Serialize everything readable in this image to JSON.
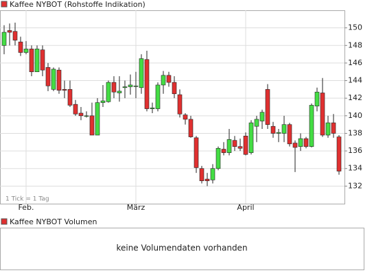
{
  "chart_data": {
    "type": "candlestick",
    "title": "Kaffee NYBOT (Rohstoffe Indikation)",
    "note": "1 Tick = 1 Tag",
    "legend_color": "#e03030",
    "up_color": "#44dd44",
    "down_color": "#e03030",
    "grid": true,
    "categories": [
      null,
      null,
      null,
      null,
      "Feb.",
      null,
      null,
      null,
      null,
      null,
      null,
      null,
      null,
      null,
      null,
      null,
      null,
      null,
      null,
      null,
      null,
      null,
      null,
      null,
      "März",
      null,
      null,
      null,
      null,
      null,
      null,
      null,
      null,
      null,
      null,
      null,
      null,
      null,
      null,
      null,
      null,
      null,
      null,
      null,
      "April",
      null,
      null,
      null,
      null,
      null,
      null,
      null,
      null,
      null,
      null,
      null,
      null,
      null,
      null,
      null,
      null,
      null
    ],
    "open": [
      148,
      149.7,
      149.6,
      148.4,
      147.2,
      147.6,
      145,
      147.5,
      145.5,
      143,
      145.2,
      143,
      143,
      141.3,
      140.3,
      140,
      140,
      137.8,
      141.5,
      141.6,
      143.8,
      142.6,
      143.2,
      143.3,
      143.4,
      143.2,
      146.4,
      140.8,
      140.8,
      143.5,
      144.6,
      143.8,
      142.4,
      140.1,
      139.6,
      137.5,
      134,
      132.8,
      132.7,
      134,
      136.2,
      135.8,
      137.2,
      136.5,
      137.7,
      135.8,
      138.8,
      139.4,
      143,
      138.8,
      138,
      138,
      139,
      136.9,
      136.5,
      137.4,
      136.5,
      141.1,
      142.6,
      137.8,
      139.2,
      137.6
    ],
    "high": [
      150.3,
      150.5,
      150.6,
      149,
      148.5,
      148,
      148,
      148,
      146,
      145.5,
      145.5,
      144,
      144,
      141.8,
      141,
      140.5,
      141.5,
      142,
      143.5,
      144,
      144.5,
      144.5,
      144,
      144.7,
      145,
      147,
      147.4,
      141.5,
      143.8,
      145.1,
      145,
      144.5,
      143,
      140.3,
      140,
      137.7,
      134.3,
      133.5,
      134.5,
      136.5,
      137,
      138.5,
      137.7,
      137.4,
      138.1,
      139.5,
      140,
      140.7,
      143.6,
      139.3,
      138.5,
      140,
      139.2,
      137.2,
      138,
      137.6,
      141.4,
      143.2,
      144.3,
      140,
      140.2,
      137.8
    ],
    "low": [
      147,
      148,
      148,
      146.8,
      147,
      144.5,
      145,
      144.5,
      142.8,
      142.8,
      142.5,
      142,
      141,
      140,
      139.5,
      139.8,
      137.8,
      137.8,
      141,
      141.5,
      142,
      141.6,
      142,
      142.4,
      142,
      142.5,
      140.5,
      140.3,
      140.5,
      142.5,
      143.3,
      142,
      139.8,
      139,
      137.5,
      133.5,
      132.3,
      132,
      132.3,
      133.8,
      135.5,
      135.5,
      136,
      136,
      135.5,
      135.6,
      137,
      138.5,
      138.5,
      137.5,
      137,
      137,
      136.5,
      133.6,
      136,
      136.3,
      136.4,
      140.5,
      137.6,
      137.5,
      137.5,
      133.3
    ],
    "close": [
      149.5,
      149.5,
      148.6,
      147.2,
      147.6,
      145,
      147.6,
      145.2,
      143.4,
      145.3,
      142.9,
      142.9,
      141.2,
      140.2,
      140,
      140,
      137.8,
      141.5,
      141.7,
      143.8,
      142.7,
      142.8,
      143.3,
      143.5,
      143.4,
      146.5,
      140.8,
      140.9,
      143.5,
      144.6,
      143.8,
      142.5,
      140.2,
      139.6,
      137.6,
      134.1,
      132.6,
      132.6,
      134,
      136.3,
      135.8,
      137.3,
      136.5,
      136.3,
      135.6,
      139.2,
      139.6,
      140.4,
      139,
      138,
      138.1,
      139,
      136.8,
      136.4,
      137.4,
      136.5,
      141.2,
      142.7,
      137.8,
      139.2,
      138,
      133.7
    ],
    "ylim": [
      130,
      152
    ],
    "yticks": [
      132,
      134,
      136,
      138,
      140,
      142,
      144,
      146,
      148,
      150
    ],
    "volume_title": "Kaffee NYBOT Volumen",
    "volume_message": "keine Volumendaten vorhanden"
  }
}
